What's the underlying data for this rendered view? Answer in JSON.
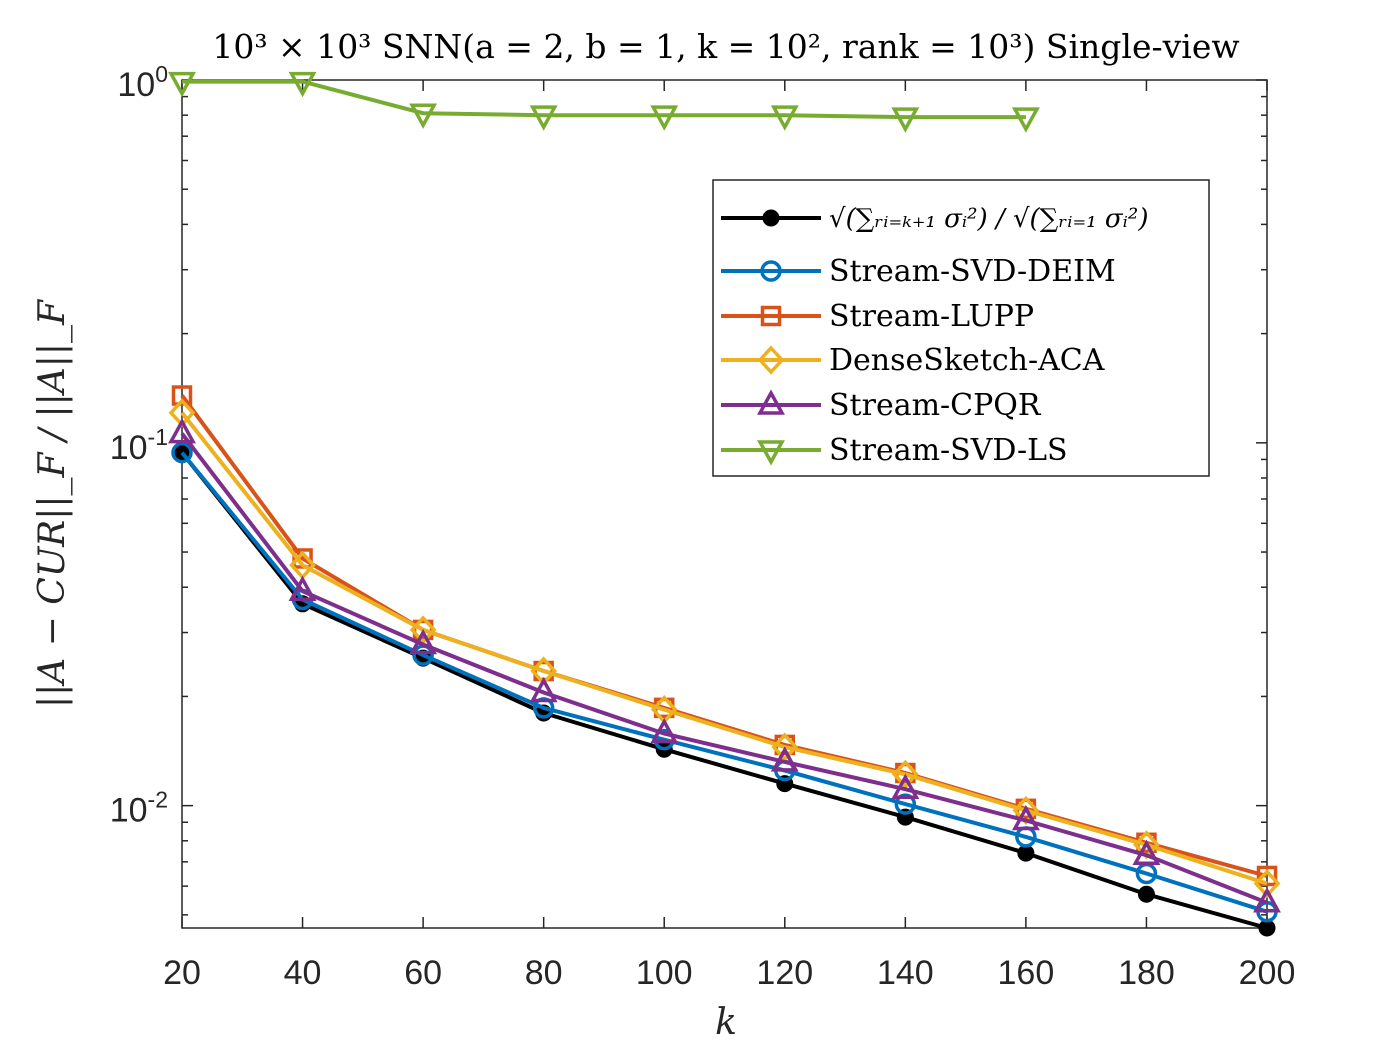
{
  "chart_data": {
    "type": "line",
    "title": "10³ × 10³ SNN(a = 2, b = 1, k = 10², rank = 10³) Single-view",
    "xlabel": "k",
    "ylabel": "||A − CUR||_F / ||A||_F",
    "xscale": "linear",
    "yscale": "log",
    "xlim": [
      20,
      200
    ],
    "ylim": [
      0.0046,
      1.0
    ],
    "x_ticks": [
      20,
      40,
      60,
      80,
      100,
      120,
      140,
      160,
      180,
      200
    ],
    "x_tick_labels": [
      "20",
      "40",
      "60",
      "80",
      "100",
      "120",
      "140",
      "160",
      "180",
      "200"
    ],
    "y_ticks": [
      0.01,
      0.1,
      1
    ],
    "y_tick_labels": [
      {
        "base": "10",
        "exp": "-2"
      },
      {
        "base": "10",
        "exp": "-1"
      },
      {
        "base": "10",
        "exp": "0"
      }
    ],
    "grid": false,
    "legend_position": "top-right",
    "x": [
      20,
      40,
      60,
      80,
      100,
      120,
      140,
      160,
      180,
      200
    ],
    "series": [
      {
        "name": "√(∑ᵣᵢ₌ₖ₊₁ σᵢ²) / √(∑ᵣᵢ₌₁ σᵢ²)",
        "color": "#000000",
        "marker": "filled-circle",
        "values": [
          0.094,
          0.036,
          0.0255,
          0.018,
          0.0143,
          0.0115,
          0.0093,
          0.0074,
          0.0057,
          0.0046
        ]
      },
      {
        "name": "Stream-SVD-DEIM",
        "color": "#0072BD",
        "marker": "circle",
        "values": [
          0.094,
          0.037,
          0.026,
          0.0186,
          0.0152,
          0.0125,
          0.0101,
          0.0082,
          0.0065,
          0.0051
        ]
      },
      {
        "name": "Stream-LUPP",
        "color": "#D95319",
        "marker": "square",
        "values": [
          0.135,
          0.048,
          0.0305,
          0.0235,
          0.0186,
          0.0147,
          0.0123,
          0.0098,
          0.0079,
          0.0064
        ]
      },
      {
        "name": "DenseSketch-ACA",
        "color": "#EDB120",
        "marker": "diamond",
        "values": [
          0.121,
          0.046,
          0.0305,
          0.0235,
          0.0184,
          0.0145,
          0.0122,
          0.0097,
          0.0078,
          0.0061
        ]
      },
      {
        "name": "Stream-CPQR",
        "color": "#7E2F8E",
        "marker": "triangle-up",
        "values": [
          0.106,
          0.039,
          0.0278,
          0.0205,
          0.0158,
          0.0132,
          0.0111,
          0.0091,
          0.0073,
          0.0054
        ]
      },
      {
        "name": "Stream-SVD-LS",
        "color": "#77AC30",
        "marker": "triangle-down",
        "values": [
          0.99,
          0.99,
          0.81,
          0.8,
          0.8,
          0.8,
          0.79,
          0.79,
          null,
          null
        ]
      }
    ]
  }
}
